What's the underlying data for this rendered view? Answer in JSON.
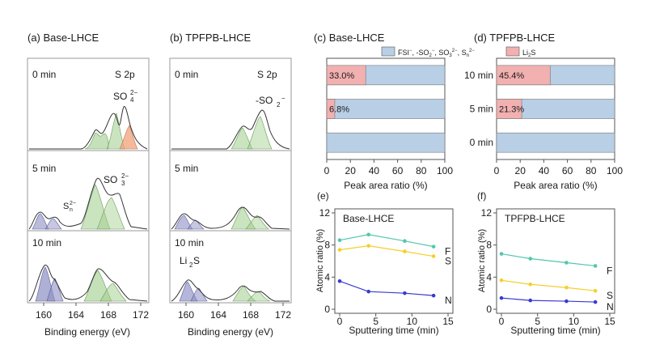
{
  "colors": {
    "blue_bar": "#b8cfe6",
    "red_bar": "#f2b0b0",
    "frame": "#9a9a9a",
    "green_peak": "#9fcd8a",
    "orange_peak": "#f0a27a",
    "purple_peak": "#8d8fc4",
    "line_F": "#52c7ad",
    "line_S": "#f5cf2a",
    "line_N": "#3a3ad0"
  },
  "chart_data": [
    {
      "id": "a",
      "type": "line",
      "panel_label": "(a) Base-LHCE",
      "orbital": "S 2p",
      "xlabel": "Binding energy (eV)",
      "x_ticks": [
        "160",
        "164",
        "168",
        "172"
      ],
      "xlim": [
        158,
        173
      ],
      "series": [
        {
          "name": "0 min",
          "annotations": [
            "SO",
            "2−",
            "4"
          ]
        },
        {
          "name": "5 min",
          "annotations": [
            "SO",
            "2−",
            "3",
            "S",
            "2−",
            "n"
          ]
        },
        {
          "name": "10 min",
          "annotations": []
        }
      ]
    },
    {
      "id": "b",
      "type": "line",
      "panel_label": "(b) TPFPB-LHCE",
      "orbital": "S 2p",
      "xlabel": "Binding energy (eV)",
      "x_ticks": [
        "160",
        "164",
        "168",
        "172"
      ],
      "xlim": [
        158,
        173
      ],
      "series": [
        {
          "name": "0 min",
          "annotations": [
            "-SO",
            "2",
            "−"
          ]
        },
        {
          "name": "5 min",
          "annotations": []
        },
        {
          "name": "10 min",
          "annotations": [
            "Li",
            "2",
            "S"
          ]
        }
      ]
    },
    {
      "id": "c",
      "type": "bar",
      "panel_label": "(c) Base-LHCE",
      "legend": [
        {
          "name_parts": [
            "FSI",
            "−",
            ", -SO",
            "2",
            "−",
            ", SO",
            "3",
            "2−",
            ", S",
            "n",
            "2−"
          ],
          "color": "#b8cfe6"
        },
        {
          "name_parts": [
            "Li",
            "2",
            "S"
          ],
          "color": "#f2b0b0"
        }
      ],
      "categories": [
        "10 min",
        "5 min",
        "0 min"
      ],
      "values_Li2S": [
        33.0,
        6.8,
        0
      ],
      "value_labels": [
        "33.0%",
        "6.8%",
        ""
      ],
      "xlabel": "Peak area ratio (%)",
      "x_ticks": [
        "0",
        "20",
        "40",
        "60",
        "80",
        "100"
      ],
      "xlim": [
        0,
        100
      ]
    },
    {
      "id": "d",
      "type": "bar",
      "panel_label": "(d) TPFPB-LHCE",
      "categories": [
        "10 min",
        "5 min",
        "0 min"
      ],
      "values_Li2S": [
        45.4,
        21.3,
        0
      ],
      "value_labels": [
        "45.4%",
        "21.3%",
        ""
      ],
      "xlabel": "Peak area ratio (%)",
      "x_ticks": [
        "0",
        "20",
        "40",
        "60",
        "80",
        "100"
      ],
      "xlim": [
        0,
        100
      ]
    },
    {
      "id": "e",
      "type": "line",
      "panel_label": "(e)",
      "inset_label": "Base-LHCE",
      "xlabel": "Sputtering time (min)",
      "ylabel": "Atomic ratio (%)",
      "x_ticks": [
        "0",
        "5",
        "10",
        "15"
      ],
      "y_ticks": [
        "0",
        "4",
        "8",
        "12"
      ],
      "xlim": [
        0,
        15
      ],
      "ylim": [
        0,
        12
      ],
      "x": [
        0,
        4,
        9,
        13
      ],
      "series": [
        {
          "name": "F",
          "values": [
            8.6,
            9.3,
            8.5,
            7.8
          ],
          "color": "#52c7ad"
        },
        {
          "name": "S",
          "values": [
            7.4,
            7.9,
            7.2,
            6.6
          ],
          "color": "#f5cf2a"
        },
        {
          "name": "N",
          "values": [
            3.5,
            2.2,
            2.0,
            1.7
          ],
          "color": "#3a3ad0"
        }
      ]
    },
    {
      "id": "f",
      "type": "line",
      "panel_label": "(f)",
      "inset_label": "TPFPB-LHCE",
      "xlabel": "Sputtering time (min)",
      "ylabel": "Atomic ratio (%)",
      "x_ticks": [
        "0",
        "5",
        "10",
        "15"
      ],
      "y_ticks": [
        "0",
        "4",
        "8",
        "12"
      ],
      "xlim": [
        0,
        15
      ],
      "ylim": [
        0,
        12
      ],
      "x": [
        0,
        4,
        9,
        13
      ],
      "series": [
        {
          "name": "F",
          "values": [
            6.9,
            6.3,
            5.8,
            5.4
          ],
          "color": "#52c7ad"
        },
        {
          "name": "S",
          "values": [
            3.6,
            3.1,
            2.7,
            2.3
          ],
          "color": "#f5cf2a"
        },
        {
          "name": "N",
          "values": [
            1.4,
            1.1,
            1.0,
            0.9
          ],
          "color": "#3a3ad0"
        }
      ]
    }
  ]
}
